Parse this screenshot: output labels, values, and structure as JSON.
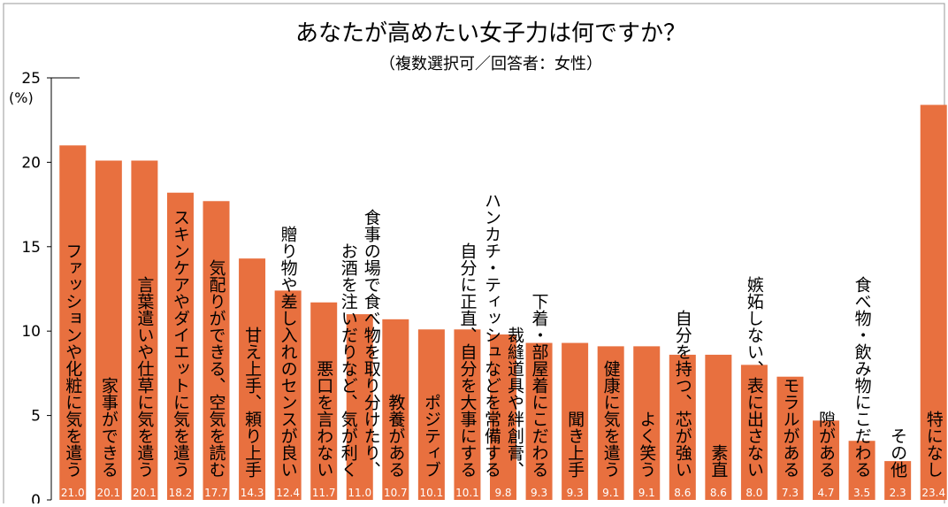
{
  "chart_data": {
    "type": "bar",
    "title": "あなたが高めたい女子力は何ですか？",
    "subtitle": "（複数選択可／回答者：女性）",
    "y_label": "(%)",
    "color": "#e8703f",
    "categories": [
      [
        "ファッションや化粧に気を遣う"
      ],
      [
        "家事ができる"
      ],
      [
        "言葉遣いや仕草に気を遣う"
      ],
      [
        "スキンケアやダイエットに気を遣う"
      ],
      [
        "気配りができる、空気を読む"
      ],
      [
        "甘え上手、頼り上手"
      ],
      [
        "贈り物や差し入れのセンスが良い"
      ],
      [
        "悪口を言わない"
      ],
      [
        "食事の場で食べ物を取り分けたり、",
        "お酒を注いだりなど、気が利く"
      ],
      [
        "教養がある"
      ],
      [
        "ポジティブ"
      ],
      [
        "自分に正直、自分を大事にする"
      ],
      [
        "裁縫道具や絆創膏、",
        "ハンカチ・ティッシュなどを常備する"
      ],
      [
        "下着・部屋着にこだわる"
      ],
      [
        "聞き上手"
      ],
      [
        "健康に気を遣う"
      ],
      [
        "よく笑う"
      ],
      [
        "自分を持つ、芯が強い"
      ],
      [
        "素直"
      ],
      [
        "嫉妬しない、表に出さない"
      ],
      [
        "モラルがある"
      ],
      [
        "隙がある"
      ],
      [
        "食べ物・飲み物にこだわる"
      ],
      [
        "その他"
      ],
      [
        "特になし"
      ]
    ],
    "values": [
      21.0,
      20.1,
      20.1,
      18.2,
      17.7,
      14.3,
      12.4,
      11.7,
      11.0,
      10.7,
      10.1,
      10.1,
      9.8,
      9.3,
      9.3,
      9.1,
      9.1,
      8.6,
      8.6,
      8.0,
      7.3,
      4.7,
      3.5,
      2.3,
      23.4
    ],
    "value_labels": [
      "21.0",
      "20.1",
      "20.1",
      "18.2",
      "17.7",
      "14.3",
      "12.4",
      "11.7",
      "11.0",
      "10.7",
      "10.1",
      "10.1",
      "9.8",
      "9.3",
      "9.3",
      "9.1",
      "9.1",
      "8.6",
      "8.6",
      "8.0",
      "7.3",
      "4.7",
      "3.5",
      "2.3",
      "23.4"
    ],
    "ylim": [
      0,
      25
    ],
    "yticks": [
      0,
      5,
      10,
      15,
      20,
      25
    ]
  }
}
